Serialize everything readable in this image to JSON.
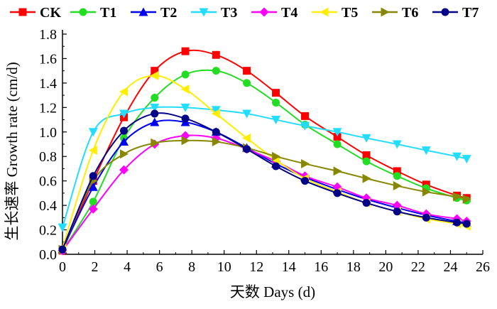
{
  "chart_data": {
    "type": "line",
    "xlabel": "天数 Days (d)",
    "ylabel": "生长速率 Growth rate (cm/d)",
    "xlim": [
      0,
      26
    ],
    "ylim": [
      0,
      1.8
    ],
    "x_ticks": [
      "0",
      "2",
      "4",
      "6",
      "8",
      "10",
      "12",
      "14",
      "16",
      "18",
      "20",
      "22",
      "24",
      "26"
    ],
    "y_ticks": [
      "0.0",
      "0.2",
      "0.4",
      "0.6",
      "0.8",
      "1.0",
      "1.2",
      "1.4",
      "1.6",
      "1.8"
    ],
    "grid": false,
    "legend_position": "top",
    "series": [
      {
        "name": "CK",
        "color": "#ff0000",
        "marker": "square",
        "x": [
          0,
          1.9,
          3.8,
          5.7,
          7.6,
          9.5,
          11.4,
          13.2,
          15,
          17,
          18.8,
          20.7,
          22.5,
          24.4,
          25
        ],
        "y": [
          0.03,
          0.6,
          1.12,
          1.5,
          1.66,
          1.63,
          1.5,
          1.32,
          1.13,
          0.96,
          0.81,
          0.68,
          0.57,
          0.48,
          0.46
        ]
      },
      {
        "name": "T1",
        "color": "#22dd22",
        "marker": "circle",
        "x": [
          0,
          1.9,
          3.8,
          5.7,
          7.6,
          9.5,
          11.4,
          13.2,
          15,
          17,
          18.8,
          20.7,
          22.5,
          24.4,
          25
        ],
        "y": [
          0.03,
          0.43,
          0.95,
          1.28,
          1.47,
          1.5,
          1.4,
          1.24,
          1.06,
          0.9,
          0.76,
          0.64,
          0.54,
          0.46,
          0.44
        ]
      },
      {
        "name": "T2",
        "color": "#0000ee",
        "marker": "triangle",
        "x": [
          0,
          1.9,
          3.8,
          5.7,
          7.6,
          9.5,
          11.4,
          13.2,
          15,
          17,
          18.8,
          20.7,
          22.5,
          24.4,
          25
        ],
        "y": [
          0.04,
          0.55,
          0.92,
          1.08,
          1.08,
          1.0,
          0.87,
          0.74,
          0.63,
          0.53,
          0.45,
          0.38,
          0.32,
          0.27,
          0.26
        ]
      },
      {
        "name": "T3",
        "color": "#22ddff",
        "marker": "triangle-down",
        "x": [
          0,
          1.9,
          3.8,
          5.7,
          7.6,
          9.5,
          11.4,
          13.2,
          15,
          17,
          18.8,
          20.7,
          22.5,
          24.4,
          25
        ],
        "y": [
          0.22,
          1.0,
          1.15,
          1.2,
          1.2,
          1.18,
          1.15,
          1.1,
          1.05,
          1.0,
          0.95,
          0.9,
          0.85,
          0.8,
          0.78
        ]
      },
      {
        "name": "T4",
        "color": "#ff00ff",
        "marker": "diamond",
        "x": [
          0,
          1.9,
          3.8,
          5.7,
          7.6,
          9.5,
          11.4,
          13.2,
          15,
          17,
          18.8,
          20.7,
          22.5,
          24.4,
          25
        ],
        "y": [
          0.03,
          0.37,
          0.69,
          0.9,
          0.97,
          0.95,
          0.86,
          0.76,
          0.64,
          0.55,
          0.46,
          0.4,
          0.33,
          0.29,
          0.27
        ]
      },
      {
        "name": "T5",
        "color": "#ffee00",
        "marker": "triangle-left",
        "x": [
          0,
          1.9,
          3.8,
          5.7,
          7.6,
          9.5,
          11.4,
          13.2,
          15,
          17,
          18.8,
          20.7,
          22.5,
          24.4,
          25
        ],
        "y": [
          0.05,
          0.85,
          1.33,
          1.46,
          1.35,
          1.15,
          0.95,
          0.77,
          0.62,
          0.51,
          0.42,
          0.35,
          0.29,
          0.25,
          0.23
        ]
      },
      {
        "name": "T6",
        "color": "#888800",
        "marker": "triangle-right",
        "x": [
          0,
          1.9,
          3.8,
          5.7,
          7.6,
          9.5,
          11.4,
          13.2,
          15,
          17,
          18.8,
          20.7,
          22.5,
          24.4,
          25
        ],
        "y": [
          0.04,
          0.6,
          0.82,
          0.91,
          0.93,
          0.92,
          0.87,
          0.8,
          0.74,
          0.68,
          0.62,
          0.56,
          0.51,
          0.47,
          0.45
        ]
      },
      {
        "name": "T7",
        "color": "#000088",
        "marker": "circle",
        "x": [
          0,
          1.9,
          3.8,
          5.7,
          7.6,
          9.5,
          11.4,
          13.2,
          15,
          17,
          18.8,
          20.7,
          22.5,
          24.4,
          25
        ],
        "y": [
          0.04,
          0.64,
          1.01,
          1.15,
          1.11,
          1.0,
          0.86,
          0.72,
          0.6,
          0.5,
          0.42,
          0.35,
          0.3,
          0.26,
          0.25
        ]
      }
    ]
  }
}
